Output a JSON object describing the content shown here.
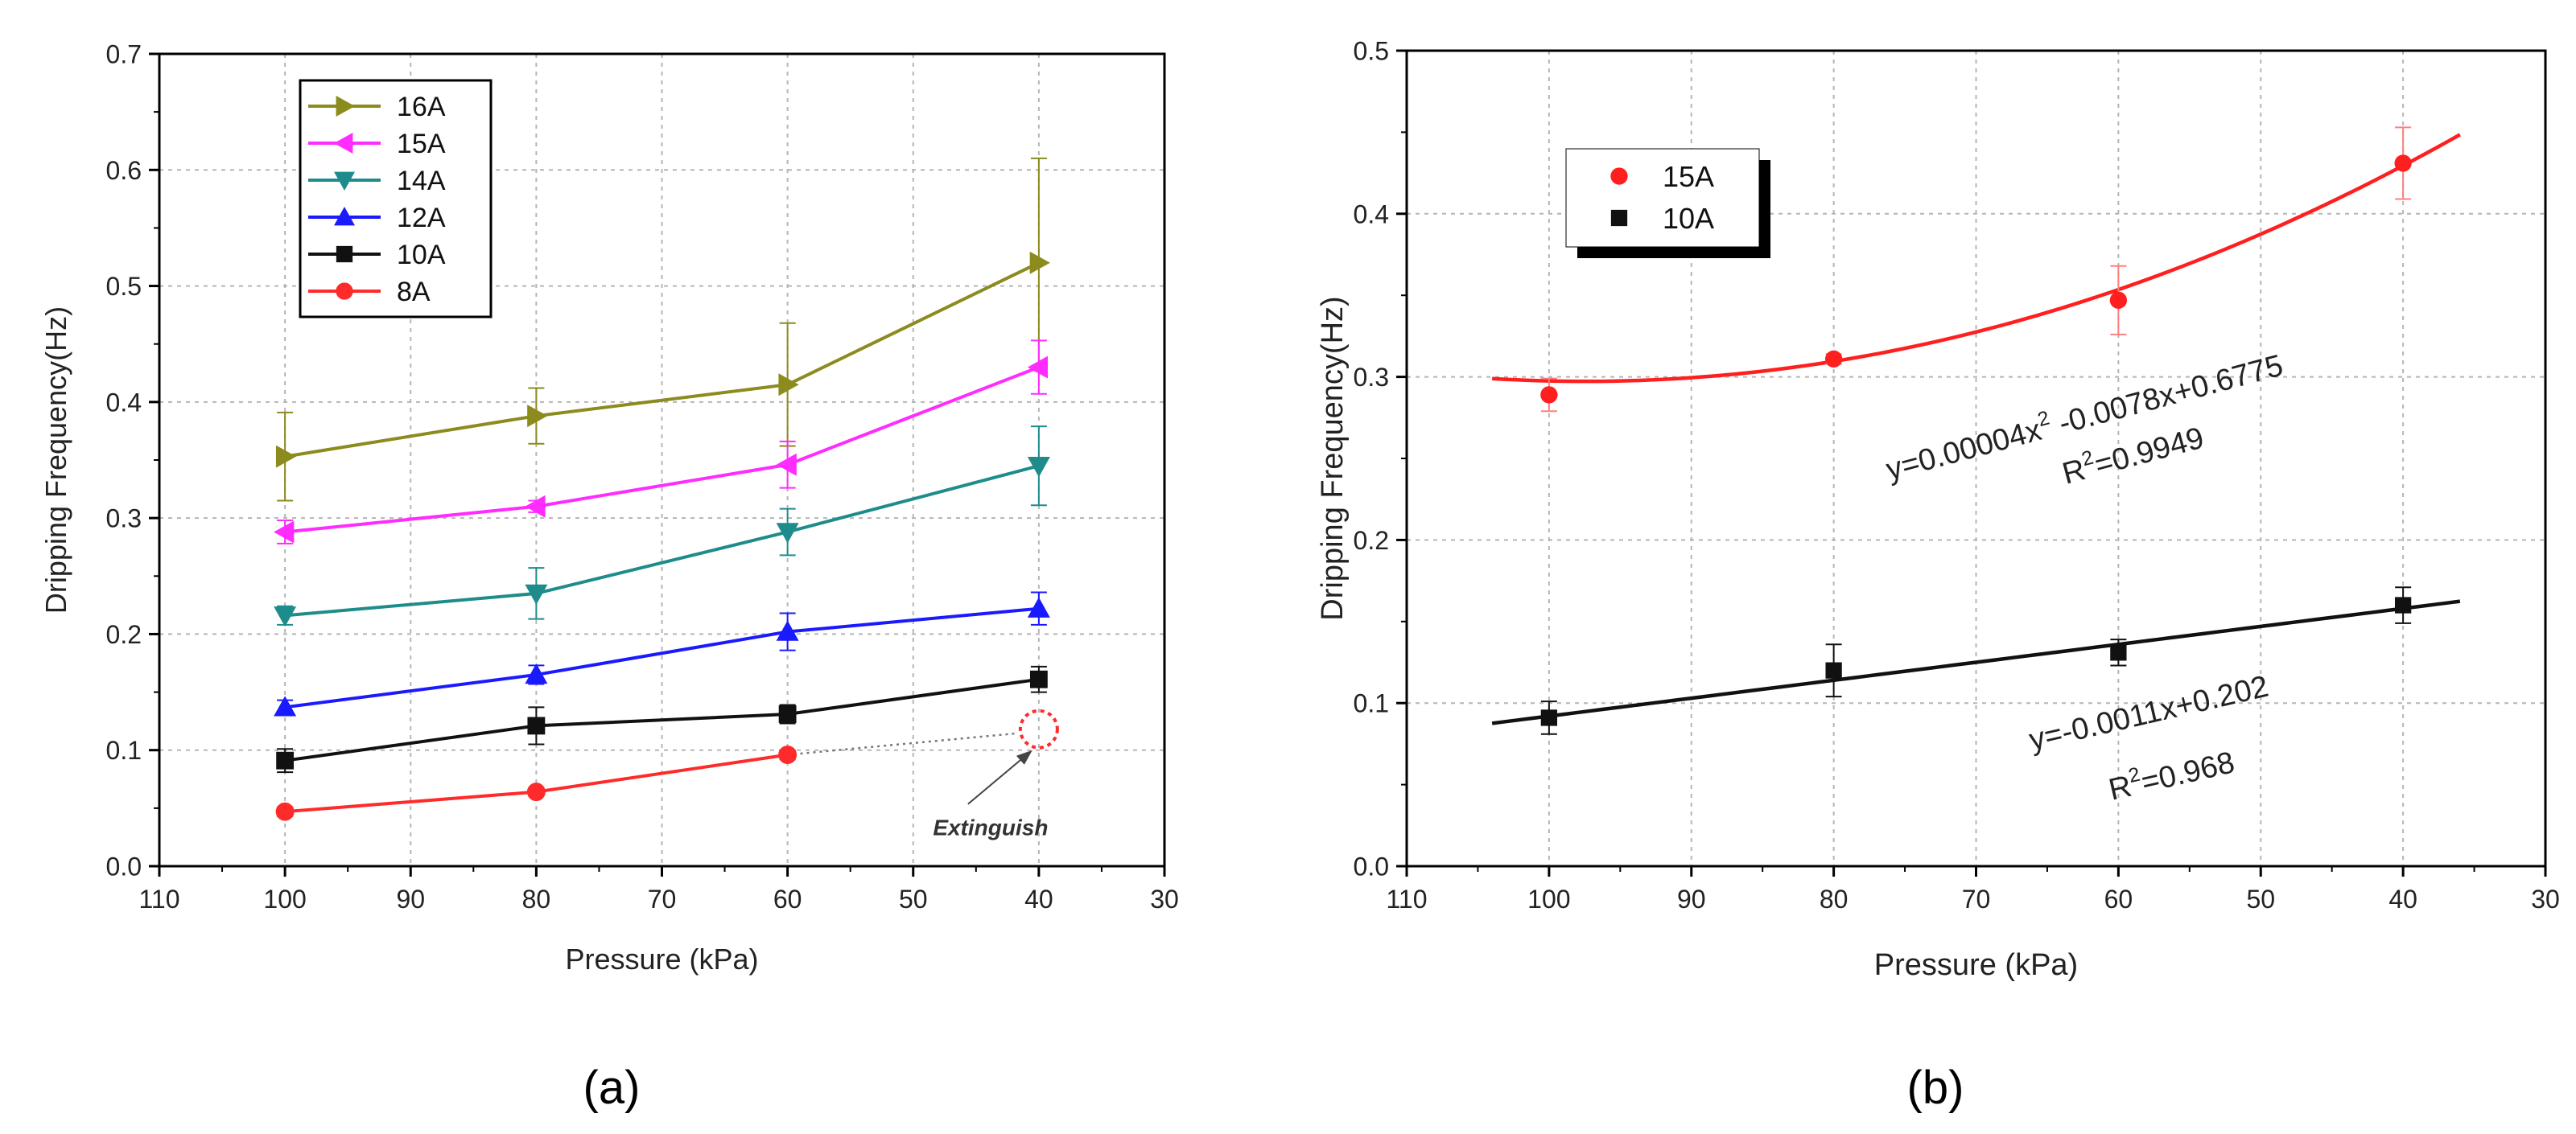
{
  "chart_data": [
    {
      "type": "line",
      "panel_label": "(a)",
      "panel_letter": "a",
      "xlabel": "Pressure (kPa)",
      "ylabel": "Dripping Frequency(Hz)",
      "xlim": [
        110,
        30
      ],
      "ylim": [
        0.0,
        0.7
      ],
      "x_ticks": [
        110,
        100,
        90,
        80,
        70,
        60,
        50,
        40,
        30
      ],
      "y_ticks": [
        "0.0",
        "0.1",
        "0.2",
        "0.3",
        "0.4",
        "0.5",
        "0.6",
        "0.7"
      ],
      "grid": true,
      "legend_position": "top-left",
      "series": [
        {
          "name": "16A",
          "marker": "triangle-right",
          "color": "#8b8b1e",
          "x": [
            100,
            80,
            60,
            40
          ],
          "y": [
            0.353,
            0.388,
            0.415,
            0.52
          ],
          "yerr": [
            0.038,
            0.024,
            0.053,
            0.09
          ]
        },
        {
          "name": "15A",
          "marker": "triangle-left",
          "color": "#ff2bff",
          "x": [
            100,
            80,
            60,
            40
          ],
          "y": [
            0.288,
            0.31,
            0.346,
            0.43
          ],
          "yerr": [
            0.01,
            0.005,
            0.02,
            0.023
          ]
        },
        {
          "name": "14A",
          "marker": "triangle-down",
          "color": "#1f8c8c",
          "x": [
            100,
            80,
            60,
            40
          ],
          "y": [
            0.216,
            0.235,
            0.288,
            0.345
          ],
          "yerr": [
            0.008,
            0.022,
            0.02,
            0.034
          ]
        },
        {
          "name": "12A",
          "marker": "triangle-up",
          "color": "#1a1aff",
          "x": [
            100,
            80,
            60,
            40
          ],
          "y": [
            0.137,
            0.165,
            0.202,
            0.222
          ],
          "yerr": [
            0.006,
            0.008,
            0.016,
            0.014
          ]
        },
        {
          "name": "10A",
          "marker": "square",
          "color": "#111111",
          "x": [
            100,
            80,
            60,
            40
          ],
          "y": [
            0.091,
            0.121,
            0.131,
            0.161
          ],
          "yerr": [
            0.01,
            0.016,
            0.008,
            0.011
          ]
        },
        {
          "name": "8A",
          "marker": "circle",
          "color": "#ff2a2a",
          "x": [
            100,
            80,
            60
          ],
          "y": [
            0.047,
            0.064,
            0.096
          ],
          "yerr": [
            0.004,
            0.003,
            0.004
          ]
        }
      ],
      "annotations": [
        {
          "text": "Extinguish",
          "x": 40,
          "y": 0.118
        }
      ]
    },
    {
      "type": "scatter",
      "panel_label": "(b)",
      "panel_letter": "b",
      "xlabel": "Pressure (kPa)",
      "ylabel": "Dripping Frequency(Hz)",
      "xlim": [
        110,
        30
      ],
      "ylim": [
        0.0,
        0.5
      ],
      "x_ticks": [
        110,
        100,
        90,
        80,
        70,
        60,
        50,
        40,
        30
      ],
      "y_ticks": [
        "0.0",
        "0.1",
        "0.2",
        "0.3",
        "0.4",
        "0.5"
      ],
      "grid": true,
      "legend_position": "top-left",
      "series": [
        {
          "name": "15A",
          "marker": "circle",
          "color": "#ff1f1f",
          "x": [
            100,
            80,
            60,
            40
          ],
          "y": [
            0.289,
            0.311,
            0.347,
            0.431
          ],
          "yerr": [
            0.01,
            0.003,
            0.021,
            0.022
          ]
        },
        {
          "name": "10A",
          "marker": "square",
          "color": "#111111",
          "x": [
            100,
            80,
            60,
            40
          ],
          "y": [
            0.091,
            0.12,
            0.131,
            0.16
          ],
          "yerr": [
            0.01,
            0.016,
            0.008,
            0.011
          ]
        }
      ],
      "fits": [
        {
          "series": "15A",
          "model": "quadratic",
          "coefficients": [
            4e-05,
            -0.0078,
            0.6775
          ],
          "x_range": [
            104,
            36
          ],
          "equation_prefix": "y=0.00004x",
          "equation_exponent": "2",
          "equation_suffix": " -0.0078x+0.6775",
          "r2_prefix": "R",
          "r2_exponent": "2",
          "r2_value": "=0.9949"
        },
        {
          "series": "10A",
          "model": "linear",
          "coefficients": [
            -0.0011,
            0.202
          ],
          "x_range": [
            104,
            36
          ],
          "equation": "y=-0.0011x+0.202",
          "r2_prefix": "R",
          "r2_exponent": "2",
          "r2_value": "=0.968"
        }
      ]
    }
  ]
}
